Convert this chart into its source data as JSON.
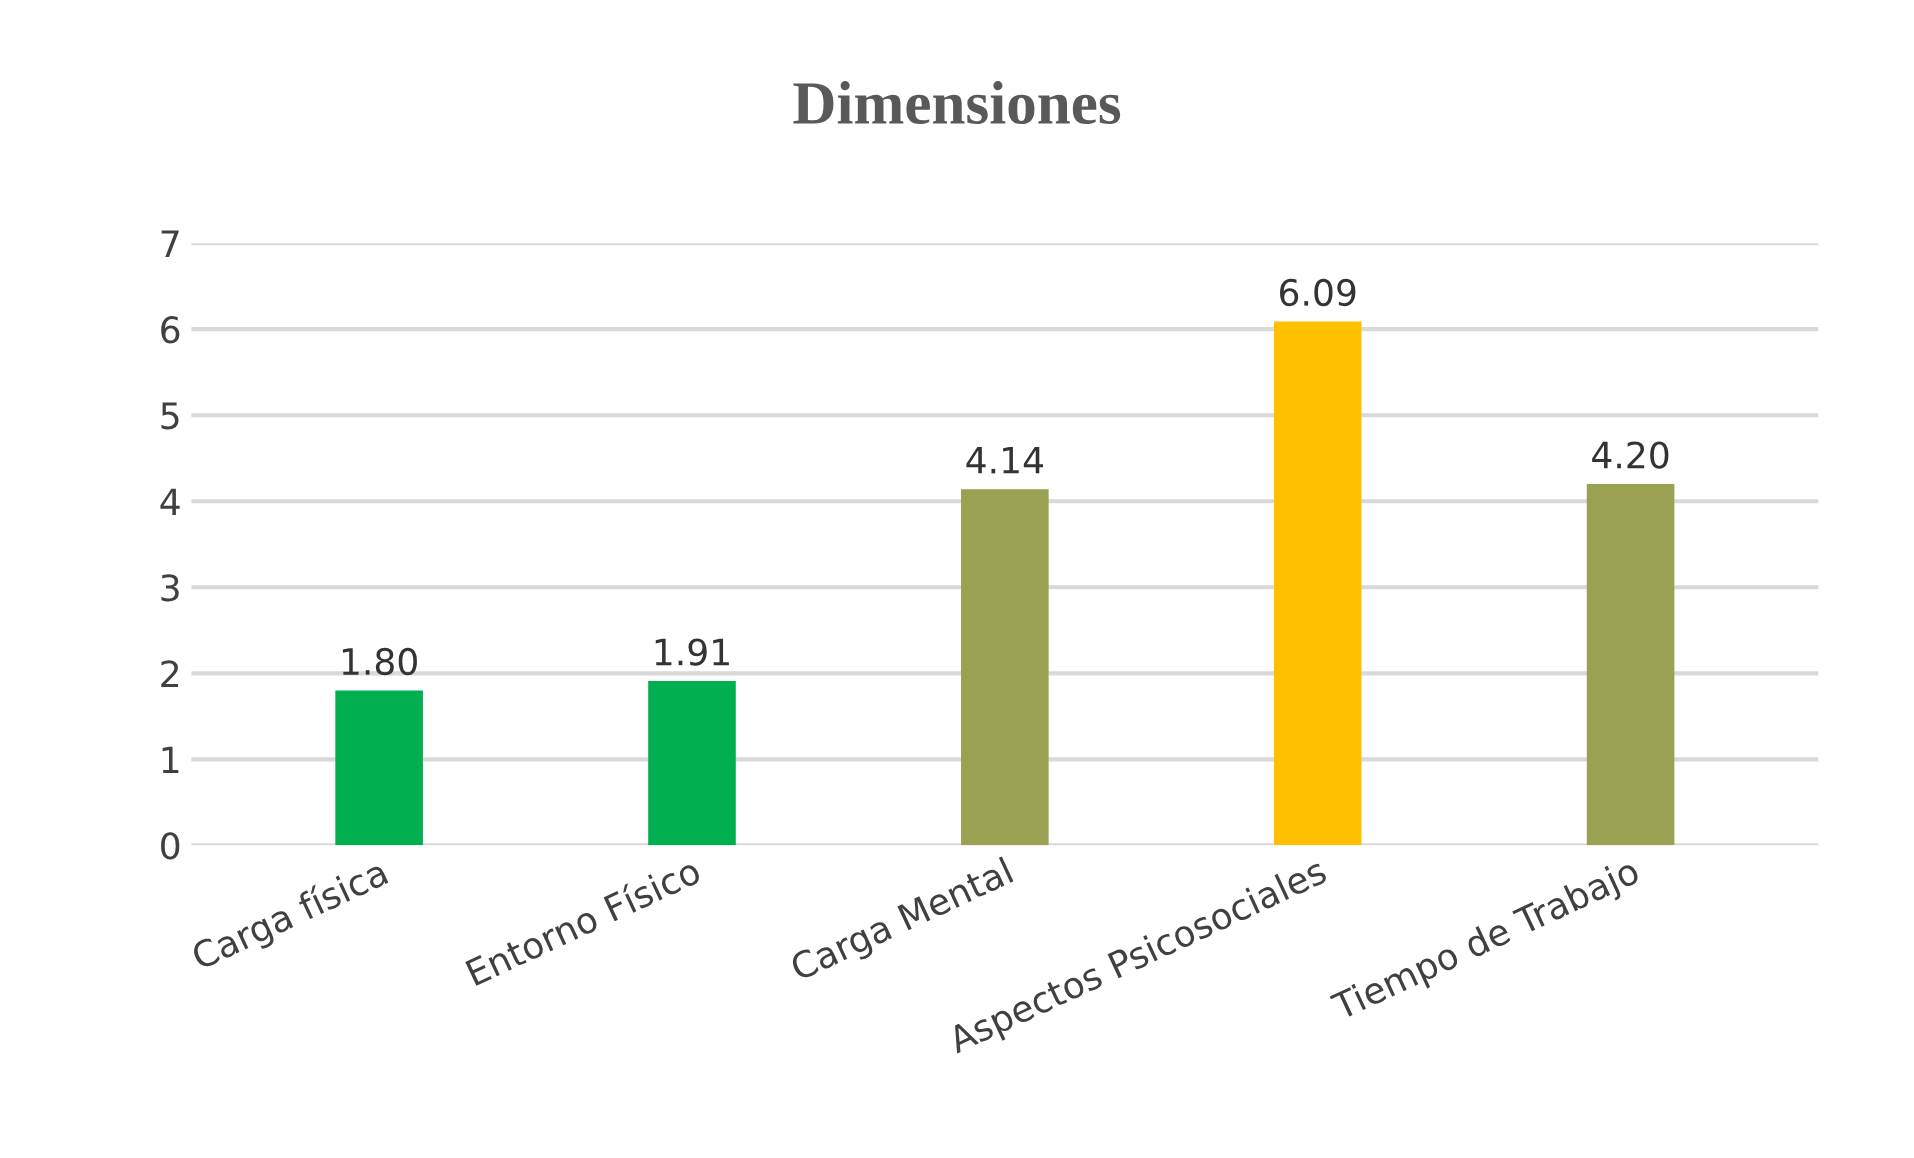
{
  "chart_data": {
    "type": "bar",
    "title": "Dimensiones",
    "categories": [
      "Carga física",
      "Entorno Físico",
      "Carga Mental",
      "Aspectos Psicosociales",
      "Tiempo de Trabajo"
    ],
    "values": [
      1.8,
      1.91,
      4.14,
      6.09,
      4.2
    ],
    "colors": [
      "#00b050",
      "#00b050",
      "#9aa152",
      "#ffc000",
      "#9aa152"
    ],
    "value_labels": [
      "1.80",
      "1.91",
      "4.14",
      "6.09",
      "4.20"
    ],
    "ylim": [
      0,
      7
    ],
    "yticks": [
      0,
      1,
      2,
      3,
      4,
      5,
      6,
      7
    ],
    "grid": "y",
    "legend": false
  }
}
